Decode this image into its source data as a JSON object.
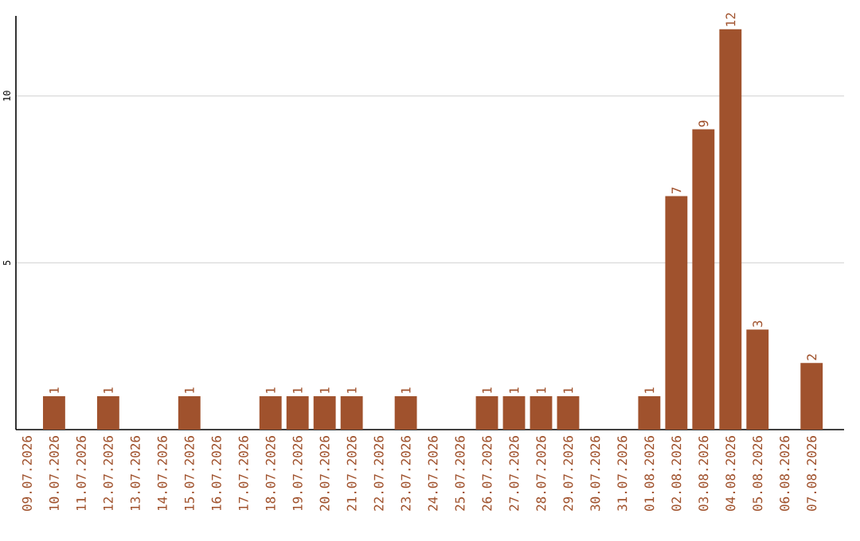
{
  "chart_data": {
    "type": "bar",
    "categories": [
      "09.07.2026",
      "10.07.2026",
      "11.07.2026",
      "12.07.2026",
      "13.07.2026",
      "14.07.2026",
      "15.07.2026",
      "16.07.2026",
      "17.07.2026",
      "18.07.2026",
      "19.07.2026",
      "20.07.2026",
      "21.07.2026",
      "22.07.2026",
      "23.07.2026",
      "24.07.2026",
      "25.07.2026",
      "26.07.2026",
      "27.07.2026",
      "28.07.2026",
      "29.07.2026",
      "30.07.2026",
      "31.07.2026",
      "01.08.2026",
      "02.08.2026",
      "03.08.2026",
      "04.08.2026",
      "05.08.2026",
      "06.08.2026",
      "07.08.2026"
    ],
    "values": [
      0,
      1,
      0,
      1,
      0,
      0,
      1,
      0,
      0,
      1,
      1,
      1,
      1,
      0,
      1,
      0,
      0,
      1,
      1,
      1,
      1,
      0,
      0,
      1,
      7,
      9,
      12,
      3,
      0,
      2
    ],
    "value_labels": [
      null,
      "1",
      null,
      "1",
      null,
      null,
      "1",
      null,
      null,
      "1",
      "1",
      "1",
      "1",
      null,
      "1",
      null,
      null,
      "1",
      "1",
      "1",
      "1",
      null,
      null,
      "1",
      "7",
      "9",
      "12",
      "3",
      null,
      "2"
    ],
    "color": "#a0522d",
    "ylim": [
      0,
      12.4
    ],
    "yticks": [
      5,
      10
    ],
    "grid": "y"
  }
}
